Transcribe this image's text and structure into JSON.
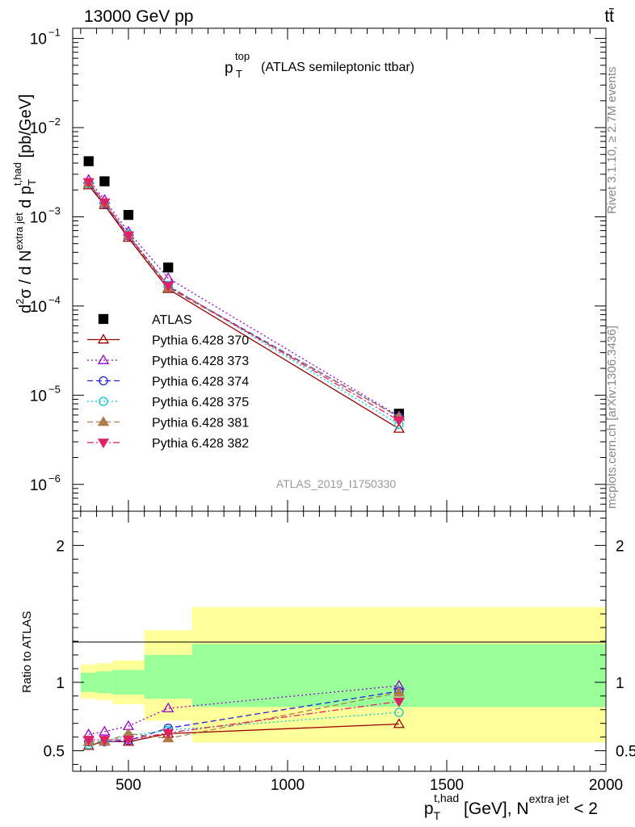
{
  "header": {
    "energy": "13000 GeV pp",
    "process": "tt̄"
  },
  "side_labels": {
    "rivet": "Rivet 3.1.10, ≥ 2.7M events",
    "mcplots": "mcplots.cern.ch [arXiv:1306.3436]"
  },
  "chart_data": [
    {
      "type": "scatter",
      "panel": "main",
      "title_main": "p",
      "title_sub": "T",
      "title_sup": "top",
      "title_rest": "(ATLAS semileptonic ttbar)",
      "analysis_tag": "ATLAS_2019_I1750330",
      "yaxis": {
        "label_main": "d",
        "label_full": "d²σ / d N^{extra jet} d p_T^{t,had} [pb/GeV]",
        "label_parts": [
          "d",
          "2",
          "σ  /  d N",
          "extra jet",
          " d p",
          "T",
          "t,had",
          " [pb/GeV]"
        ],
        "scale": "log",
        "ylim": [
          5e-07,
          0.13
        ],
        "tick_values": [
          1e-06,
          1e-05,
          0.0001,
          0.001,
          0.01,
          0.1
        ],
        "tick_labels": [
          [
            "10",
            "−6"
          ],
          [
            "10",
            "−5"
          ],
          [
            "10",
            "−4"
          ],
          [
            "10",
            "−3"
          ],
          [
            "10",
            "−2"
          ],
          [
            "10",
            "−1"
          ]
        ]
      },
      "xlim": [
        325,
        2000
      ],
      "legend_position": "left-middle",
      "series": [
        {
          "name": "ATLAS",
          "color": "#000000",
          "marker": "square",
          "line": "none",
          "x": [
            375,
            425,
            500,
            625,
            1350
          ],
          "y": [
            0.0042,
            0.0025,
            0.00105,
            0.00027,
            6.2e-06
          ]
        },
        {
          "name": "Pythia 6.428 370",
          "color": "#990000",
          "marker": "triangle-open",
          "line": "solid",
          "x": [
            375,
            425,
            500,
            625,
            1350
          ],
          "y": [
            0.00225,
            0.00135,
            0.00058,
            0.000155,
            4.2e-06
          ]
        },
        {
          "name": "Pythia 6.428 373",
          "color": "#9900cc",
          "marker": "triangle-open",
          "line": "dotted",
          "x": [
            375,
            425,
            500,
            625,
            1350
          ],
          "y": [
            0.0026,
            0.00155,
            0.00068,
            0.000205,
            5.8e-06
          ]
        },
        {
          "name": "Pythia 6.428 374",
          "color": "#2222dd",
          "marker": "circle-open",
          "line": "dashed",
          "x": [
            375,
            425,
            500,
            625,
            1350
          ],
          "y": [
            0.00235,
            0.0014,
            0.00061,
            0.000165,
            5.7e-06
          ]
        },
        {
          "name": "Pythia 6.428 375",
          "color": "#00cccc",
          "marker": "circle-open",
          "line": "dotted",
          "x": [
            375,
            425,
            500,
            625,
            1350
          ],
          "y": [
            0.00235,
            0.00142,
            0.00064,
            0.00017,
            4.7e-06
          ]
        },
        {
          "name": "Pythia 6.428 381",
          "color": "#b07a4a",
          "marker": "triangle-filled",
          "line": "dashed",
          "x": [
            375,
            425,
            500,
            625,
            1350
          ],
          "y": [
            0.0024,
            0.00142,
            0.00062,
            0.00016,
            5.7e-06
          ]
        },
        {
          "name": "Pythia 6.428 382",
          "color": "#dd2266",
          "marker": "triangle-down-filled",
          "line": "dashdot",
          "x": [
            375,
            425,
            500,
            625,
            1350
          ],
          "y": [
            0.00245,
            0.00145,
            0.00062,
            0.000168,
            5.2e-06
          ]
        }
      ]
    },
    {
      "type": "scatter",
      "panel": "ratio",
      "ylabel": "Ratio to ATLAS",
      "ylim": [
        0.35,
        2.25
      ],
      "tick_values": [
        0.5,
        1,
        2
      ],
      "tick_labels": [
        "0.5",
        "1",
        "2"
      ],
      "xlim": [
        325,
        2000
      ],
      "x_tick_values": [
        500,
        1000,
        1500,
        2000
      ],
      "x_tick_labels": [
        "500",
        "1000",
        "1500",
        "2000"
      ],
      "xlabel_parts": [
        "p",
        "T",
        "t,had",
        " [GeV], N",
        "extra jet",
        " < 2"
      ],
      "bands": [
        {
          "x0": 350,
          "x1": 400,
          "green": [
            0.93,
            1.07
          ],
          "yellow": [
            0.88,
            1.13
          ]
        },
        {
          "x0": 400,
          "x1": 450,
          "green": [
            0.92,
            1.08
          ],
          "yellow": [
            0.87,
            1.14
          ]
        },
        {
          "x0": 450,
          "x1": 550,
          "green": [
            0.91,
            1.09
          ],
          "yellow": [
            0.84,
            1.16
          ]
        },
        {
          "x0": 550,
          "x1": 700,
          "green": [
            0.88,
            1.2
          ],
          "yellow": [
            0.72,
            1.38
          ]
        },
        {
          "x0": 700,
          "x1": 2000,
          "green": [
            0.82,
            1.28
          ],
          "yellow": [
            0.56,
            1.55
          ]
        }
      ],
      "series": [
        {
          "name": "Pythia 6.428 370",
          "x": [
            375,
            425,
            500,
            625,
            1350
          ],
          "y": [
            0.535,
            0.57,
            0.565,
            0.625,
            0.695
          ]
        },
        {
          "name": "Pythia 6.428 373",
          "x": [
            375,
            425,
            500,
            625,
            1350
          ],
          "y": [
            0.62,
            0.64,
            0.68,
            0.81,
            0.975
          ]
        },
        {
          "name": "Pythia 6.428 374",
          "x": [
            375,
            425,
            500,
            625,
            1350
          ],
          "y": [
            0.565,
            0.565,
            0.575,
            0.665,
            0.935
          ]
        },
        {
          "name": "Pythia 6.428 375",
          "x": [
            375,
            425,
            500,
            625,
            1350
          ],
          "y": [
            0.545,
            0.57,
            0.61,
            0.65,
            0.78
          ]
        },
        {
          "name": "Pythia 6.428 381",
          "x": [
            375,
            425,
            500,
            625,
            1350
          ],
          "y": [
            0.565,
            0.565,
            0.625,
            0.59,
            0.925
          ]
        },
        {
          "name": "Pythia 6.428 382",
          "x": [
            375,
            425,
            500,
            625,
            1350
          ],
          "y": [
            0.58,
            0.58,
            0.58,
            0.63,
            0.86
          ]
        }
      ]
    }
  ]
}
